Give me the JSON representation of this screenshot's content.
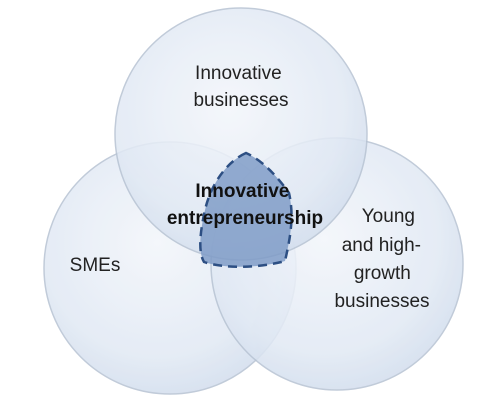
{
  "diagram": {
    "sets": [
      {
        "id": "innovative-businesses",
        "lines": [
          "Innovative",
          "businesses"
        ]
      },
      {
        "id": "smes",
        "lines": [
          "SMEs"
        ]
      },
      {
        "id": "young-high-growth",
        "lines": [
          "Young",
          "and high-",
          "growth",
          "businesses"
        ]
      }
    ],
    "intersection": {
      "lines": [
        "Innovative",
        "entrepreneurship"
      ]
    },
    "colors": {
      "circle_fill_light": "#f1f5fb",
      "circle_fill_dark": "#d4dfee",
      "circle_stroke": "#b7c3d3",
      "core_fill": "#7d9ac6",
      "core_stroke": "#2d4f83",
      "text": "#222222"
    }
  }
}
